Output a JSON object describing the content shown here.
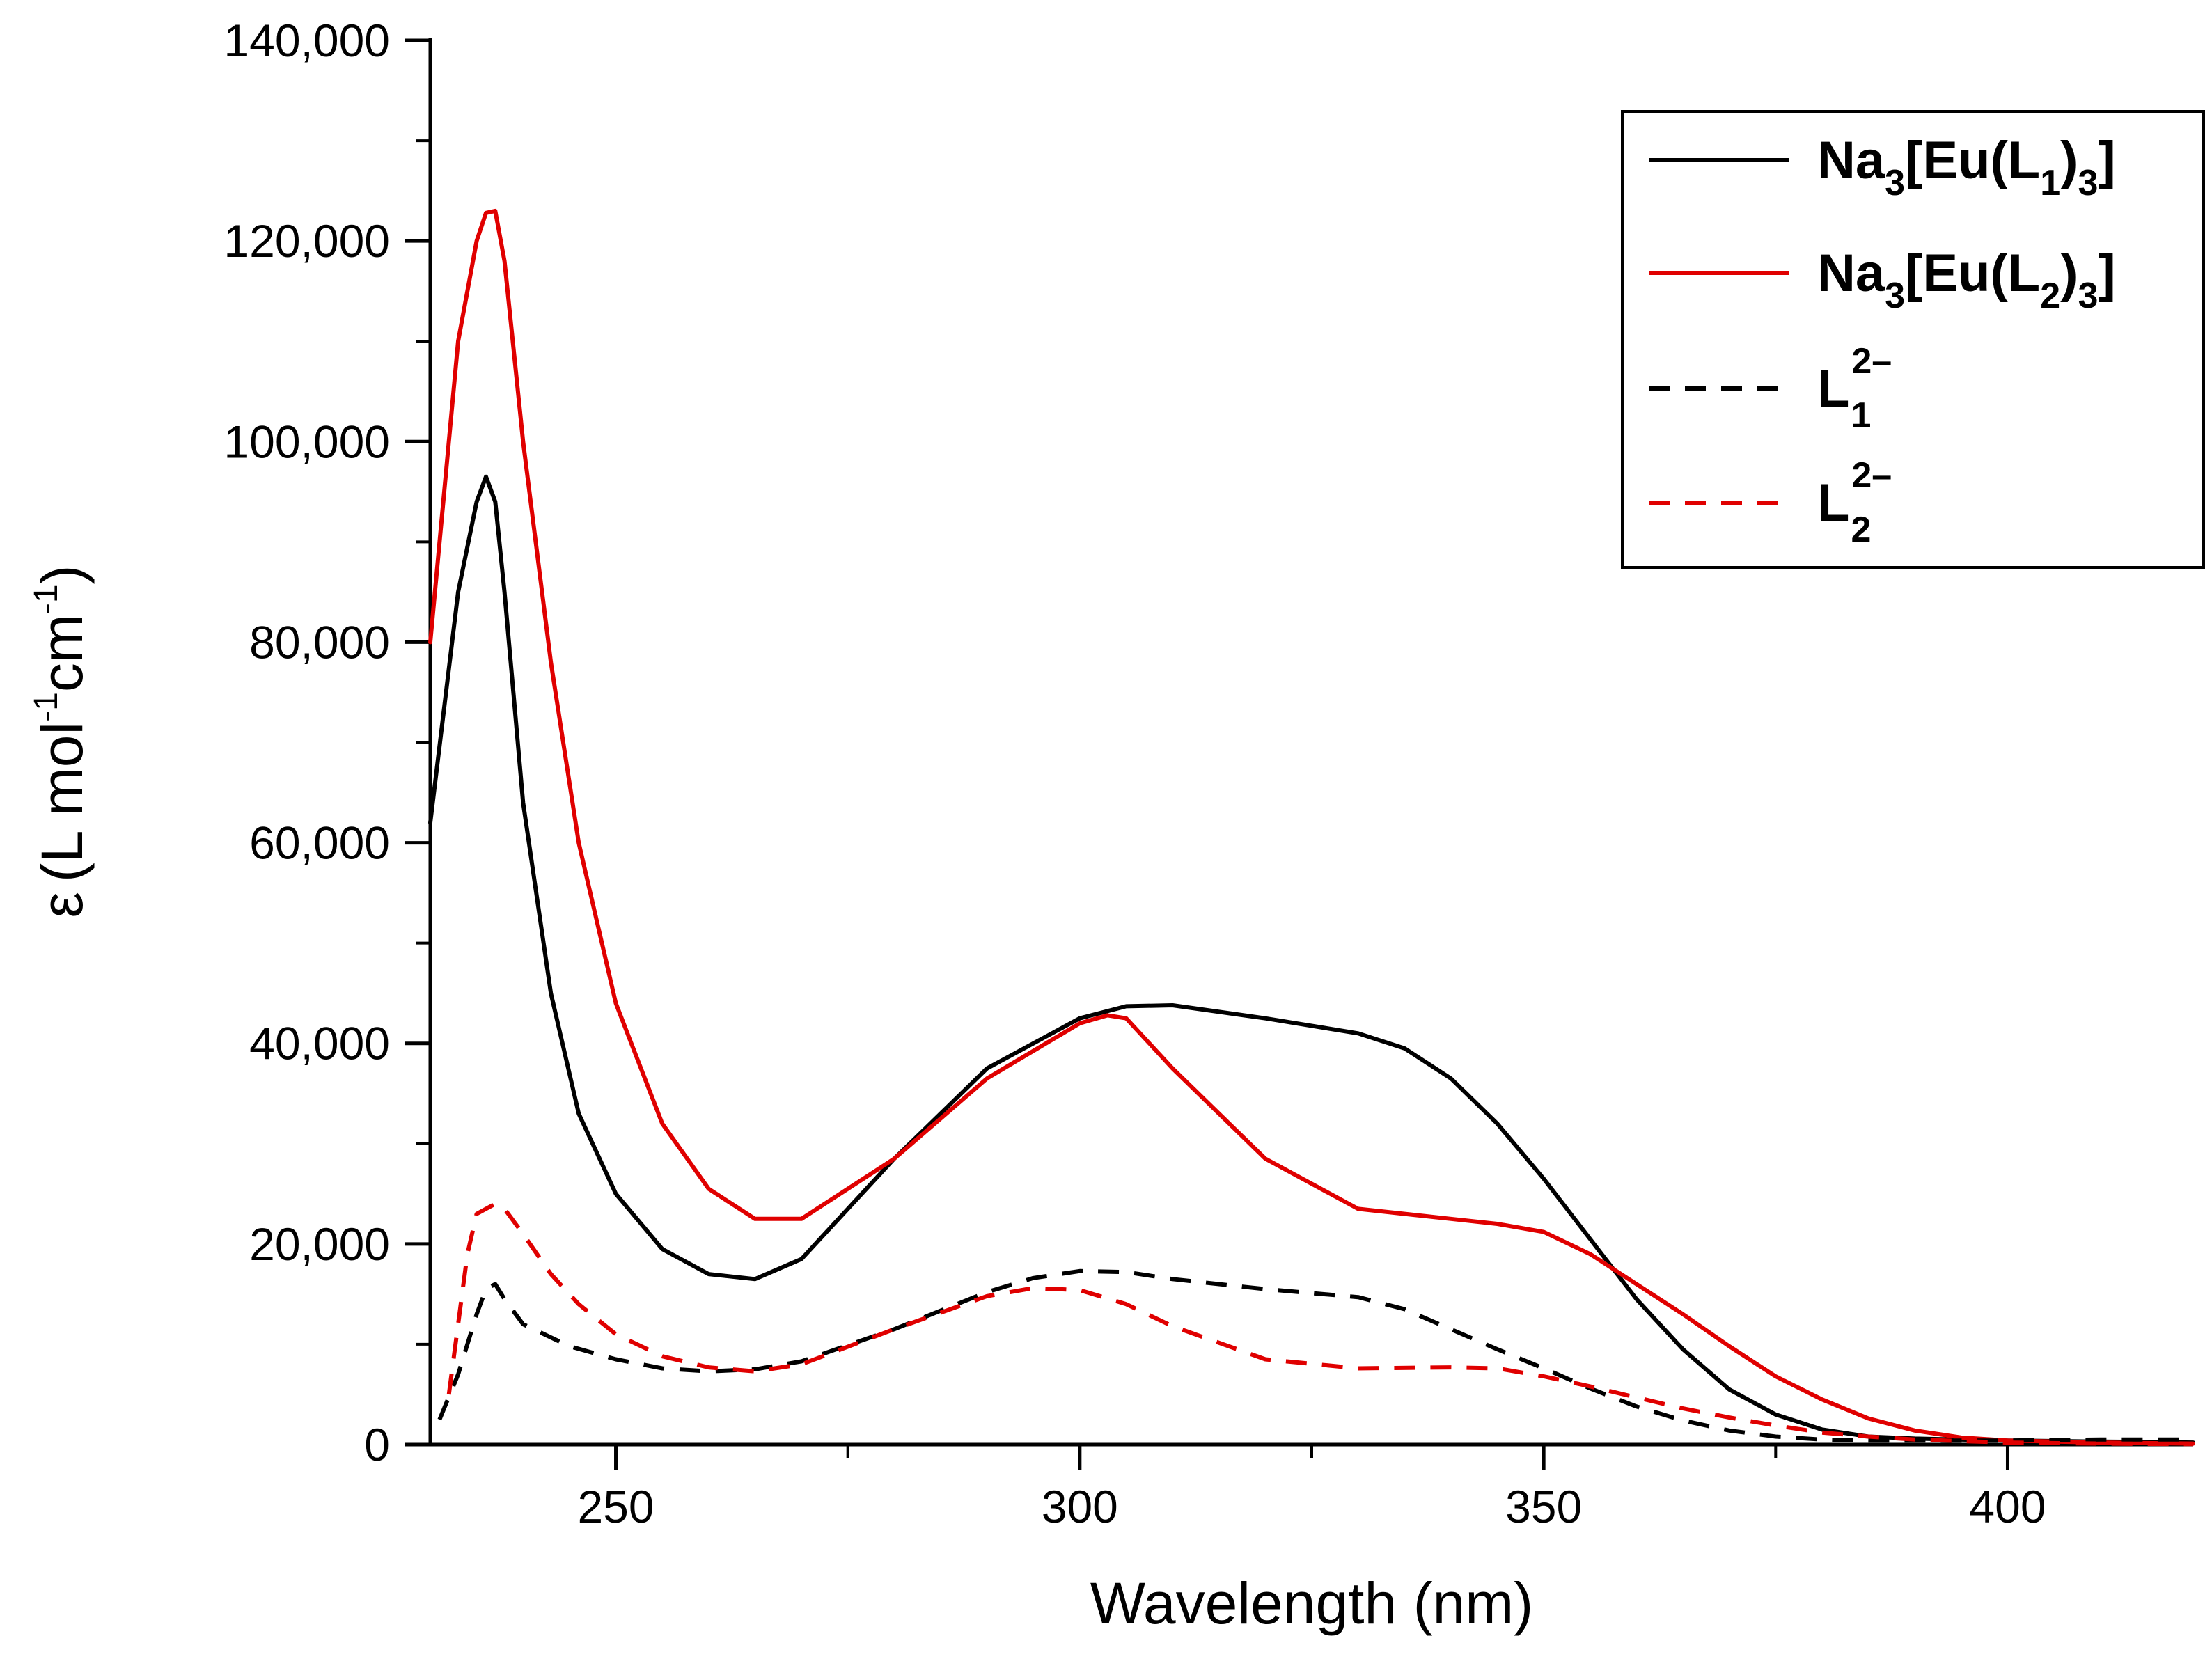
{
  "chart_data": {
    "type": "line",
    "title": "",
    "xlabel": "Wavelength (nm)",
    "ylabel": "ε (L mol⁻¹cm⁻¹)",
    "ylabel_parts": {
      "eps": "ε",
      "open": "(L mol",
      "sup1": "-1",
      "cm": "cm",
      "sup2": "-1",
      "close": ")"
    },
    "xlim": [
      230,
      420
    ],
    "ylim": [
      0,
      140000
    ],
    "xticks": [
      250,
      300,
      350,
      400
    ],
    "xtick_labels": [
      "250",
      "300",
      "350",
      "400"
    ],
    "yticks": [
      0,
      20000,
      40000,
      60000,
      80000,
      100000,
      120000,
      140000
    ],
    "ytick_labels": [
      "0",
      "20,000",
      "40,000",
      "60,000",
      "80,000",
      "100,000",
      "120,000",
      "140,000"
    ],
    "legend_position": "top-right",
    "series": [
      {
        "name": "Na3[Eu(L1)3]",
        "legend": {
          "a": "Na",
          "s1": "3",
          "b": "[Eu(L",
          "s2": "1",
          "c": ")",
          "s3": "3",
          "d": "]"
        },
        "color": "#000000",
        "dash": "solid",
        "x": [
          230,
          233,
          235,
          236,
          237,
          238,
          240,
          243,
          246,
          250,
          255,
          260,
          265,
          270,
          280,
          290,
          300,
          305,
          310,
          320,
          330,
          335,
          340,
          345,
          350,
          355,
          360,
          365,
          370,
          375,
          380,
          385,
          390,
          400,
          410,
          420
        ],
        "y": [
          62000,
          85000,
          94000,
          96500,
          94000,
          85000,
          64000,
          45000,
          33000,
          25000,
          19500,
          17000,
          16500,
          18500,
          28500,
          37500,
          42500,
          43700,
          43800,
          42500,
          41000,
          39500,
          36500,
          32000,
          26500,
          20500,
          14500,
          9500,
          5500,
          3000,
          1500,
          800,
          600,
          400,
          300,
          200
        ]
      },
      {
        "name": "Na3[Eu(L2)3]",
        "legend": {
          "a": "Na",
          "s1": "3",
          "b": "[Eu(L",
          "s2": "2",
          "c": ")",
          "s3": "3",
          "d": "]"
        },
        "color": "#e00000",
        "dash": "solid",
        "x": [
          230,
          233,
          235,
          236,
          237,
          238,
          240,
          243,
          246,
          250,
          255,
          260,
          265,
          270,
          280,
          290,
          300,
          303,
          305,
          310,
          320,
          330,
          340,
          345,
          350,
          355,
          360,
          365,
          370,
          375,
          380,
          385,
          390,
          395,
          400,
          410,
          420
        ],
        "y": [
          80000,
          110000,
          120000,
          122800,
          123000,
          118000,
          100000,
          78000,
          60000,
          44000,
          32000,
          25500,
          22500,
          22500,
          28500,
          36500,
          42000,
          42800,
          42500,
          37500,
          28500,
          23500,
          22500,
          22000,
          21200,
          19000,
          16000,
          13000,
          9800,
          6800,
          4500,
          2600,
          1400,
          700,
          400,
          200,
          100
        ]
      },
      {
        "name": "L1 2-",
        "legend": {
          "a": "L",
          "s1": "1",
          "sup": "2–"
        },
        "color": "#000000",
        "dash": "dashed",
        "x": [
          231,
          233,
          235,
          236,
          237,
          238,
          240,
          245,
          250,
          255,
          260,
          265,
          270,
          280,
          290,
          295,
          300,
          305,
          310,
          320,
          330,
          335,
          340,
          345,
          350,
          355,
          360,
          365,
          370,
          375,
          380,
          385,
          390,
          400,
          410,
          420
        ],
        "y": [
          2500,
          7000,
          13000,
          15500,
          16000,
          14500,
          12000,
          9800,
          8500,
          7600,
          7300,
          7500,
          8300,
          11500,
          15200,
          16600,
          17300,
          17200,
          16500,
          15500,
          14700,
          13500,
          11500,
          9500,
          7600,
          5600,
          3800,
          2400,
          1400,
          800,
          500,
          400,
          400,
          400,
          500,
          500
        ]
      },
      {
        "name": "L2 2-",
        "legend": {
          "a": "L",
          "s1": "2",
          "sup": "2–"
        },
        "color": "#e00000",
        "dash": "dashed",
        "x": [
          232,
          233,
          234,
          235,
          236,
          237,
          238,
          240,
          243,
          246,
          250,
          255,
          260,
          265,
          270,
          280,
          290,
          295,
          300,
          305,
          310,
          320,
          330,
          340,
          345,
          350,
          355,
          360,
          365,
          370,
          375,
          380,
          385,
          390,
          400,
          410,
          420
        ],
        "y": [
          5000,
          12000,
          19000,
          23000,
          23500,
          24000,
          23500,
          21000,
          17000,
          14000,
          11000,
          8800,
          7700,
          7300,
          8000,
          11500,
          14800,
          15600,
          15400,
          14000,
          11800,
          8500,
          7600,
          7700,
          7600,
          6800,
          5800,
          4700,
          3600,
          2700,
          1900,
          1200,
          800,
          500,
          200,
          100,
          50
        ]
      }
    ]
  }
}
